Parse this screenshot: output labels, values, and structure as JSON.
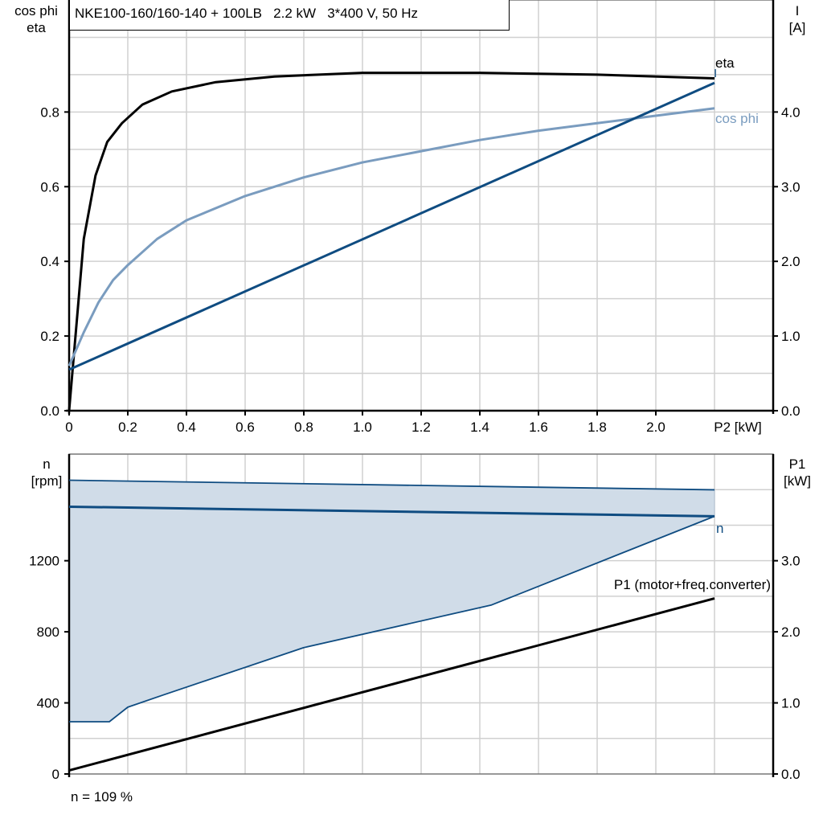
{
  "title": "NKE100-160/160-140 + 100LB   2.2 kW   3*400 V, 50 Hz",
  "footer": "n = 109 %",
  "chart_data": [
    {
      "type": "line",
      "left_axis_label": [
        "cos phi",
        "eta"
      ],
      "right_axis_label": [
        "I",
        "[A]"
      ],
      "xlabel": "P2 [kW]",
      "xlim": [
        0,
        2.4
      ],
      "ylim_left": [
        0,
        1.1
      ],
      "ylim_right": [
        0,
        5.5
      ],
      "xticks": [
        "0",
        "0.2",
        "0.4",
        "0.6",
        "0.8",
        "1.0",
        "1.2",
        "1.4",
        "1.6",
        "1.8",
        "2.0"
      ],
      "yticks_left": [
        "0.0",
        "0.2",
        "0.4",
        "0.6",
        "0.8"
      ],
      "yticks_right": [
        "0.0",
        "1.0",
        "2.0",
        "3.0",
        "4.0"
      ],
      "grid": true,
      "series": [
        {
          "name": "eta",
          "axis": "left",
          "color": "#000000",
          "x": [
            0,
            0.05,
            0.09,
            0.13,
            0.18,
            0.25,
            0.35,
            0.5,
            0.7,
            1.0,
            1.4,
            1.8,
            2.2
          ],
          "y": [
            0,
            0.46,
            0.63,
            0.72,
            0.77,
            0.82,
            0.855,
            0.88,
            0.895,
            0.905,
            0.905,
            0.9,
            0.89
          ]
        },
        {
          "name": "cos phi",
          "axis": "left",
          "color": "#7a9cbf",
          "x": [
            0,
            0.05,
            0.1,
            0.15,
            0.2,
            0.3,
            0.4,
            0.6,
            0.8,
            1.0,
            1.2,
            1.4,
            1.6,
            1.8,
            2.0,
            2.2
          ],
          "y": [
            0.12,
            0.21,
            0.29,
            0.35,
            0.39,
            0.46,
            0.51,
            0.575,
            0.625,
            0.665,
            0.695,
            0.725,
            0.75,
            0.77,
            0.79,
            0.81
          ]
        },
        {
          "name": "I",
          "axis": "right",
          "color": "#0f4c81",
          "x": [
            0,
            2.2
          ],
          "y": [
            0.55,
            4.39
          ]
        }
      ]
    },
    {
      "type": "area",
      "left_axis_label": [
        "n",
        "[rpm]"
      ],
      "right_axis_label": [
        "P1",
        "[kW]"
      ],
      "xlim": [
        0,
        2.4
      ],
      "ylim_left": [
        0,
        1800
      ],
      "ylim_right": [
        0,
        4.5
      ],
      "yticks_left": [
        "0",
        "400",
        "800",
        "1200"
      ],
      "yticks_right": [
        "0.0",
        "1.0",
        "2.0",
        "3.0"
      ],
      "grid": true,
      "fill_color": "#d0dce8",
      "series": [
        {
          "name": "n",
          "axis": "left",
          "color": "#0f4c81",
          "x": [
            0,
            2.2
          ],
          "y": [
            1504,
            1450
          ]
        },
        {
          "role": "n max",
          "axis": "left",
          "color": "#0f4c81",
          "x": [
            0,
            2.2
          ],
          "y": [
            1653,
            1599
          ]
        },
        {
          "role": "n min",
          "axis": "left",
          "color": "#0f4c81",
          "x": [
            0,
            0.137,
            0.2,
            0.32,
            0.8,
            1.44,
            2.2
          ],
          "y": [
            294,
            294,
            376,
            444,
            711,
            951,
            1450
          ]
        },
        {
          "name": "P1 (motor+freq.converter)",
          "axis": "right",
          "color": "#000000",
          "x": [
            0,
            2.2
          ],
          "y": [
            0.05,
            2.47
          ]
        }
      ]
    }
  ]
}
